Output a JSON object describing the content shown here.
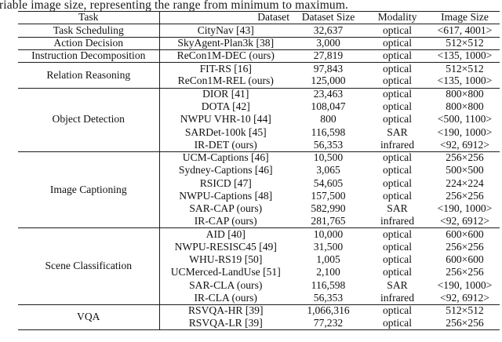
{
  "caption": {
    "visible_text": "riable image size, representing the range from minimum to maximum."
  },
  "table": {
    "headers": [
      "Task",
      "Dataset",
      "Dataset Size",
      "Modality",
      "Image Size"
    ],
    "groups": [
      {
        "task": "Task Scheduling",
        "rows": [
          {
            "dataset": "CityNav [43]",
            "dataset_size": "32,637",
            "modality": "optical",
            "image_size": "<617, 4001>"
          }
        ]
      },
      {
        "task": "Action Decision",
        "rows": [
          {
            "dataset": "SkyAgent-Plan3k [38]",
            "dataset_size": "3,000",
            "modality": "optical",
            "image_size": "512×512"
          }
        ]
      },
      {
        "task": "Instruction Decomposition",
        "rows": [
          {
            "dataset": "ReCon1M-DEC (ours)",
            "dataset_size": "27,819",
            "modality": "optical",
            "image_size": "<135, 1000>"
          }
        ]
      },
      {
        "task": "Relation Reasoning",
        "rows": [
          {
            "dataset": "FIT-RS [16]",
            "dataset_size": "97,843",
            "modality": "optical",
            "image_size": "512×512"
          },
          {
            "dataset": "ReCon1M-REL (ours)",
            "dataset_size": "125,000",
            "modality": "optical",
            "image_size": "<135, 1000>"
          }
        ]
      },
      {
        "task": "Object Detection",
        "rows": [
          {
            "dataset": "DIOR [41]",
            "dataset_size": "23,463",
            "modality": "optical",
            "image_size": "800×800"
          },
          {
            "dataset": "DOTA [42]",
            "dataset_size": "108,047",
            "modality": "optical",
            "image_size": "800×800"
          },
          {
            "dataset": "NWPU VHR-10 [44]",
            "dataset_size": "800",
            "modality": "optical",
            "image_size": "<500, 1100>"
          },
          {
            "dataset": "SARDet-100k [45]",
            "dataset_size": "116,598",
            "modality": "SAR",
            "image_size": "<190, 1000>"
          },
          {
            "dataset": "IR-DET (ours)",
            "dataset_size": "56,353",
            "modality": "infrared",
            "image_size": "<92, 6912>"
          }
        ]
      },
      {
        "task": "Image Captioning",
        "rows": [
          {
            "dataset": "UCM-Captions [46]",
            "dataset_size": "10,500",
            "modality": "optical",
            "image_size": "256×256"
          },
          {
            "dataset": "Sydney-Captions [46]",
            "dataset_size": "3,065",
            "modality": "optical",
            "image_size": "500×500"
          },
          {
            "dataset": "RSICD [47]",
            "dataset_size": "54,605",
            "modality": "optical",
            "image_size": "224×224"
          },
          {
            "dataset": "NWPU-Captions [48]",
            "dataset_size": "157,500",
            "modality": "optical",
            "image_size": "256×256"
          },
          {
            "dataset": "SAR-CAP (ours)",
            "dataset_size": "582,990",
            "modality": "SAR",
            "image_size": "<190, 1000>"
          },
          {
            "dataset": "IR-CAP (ours)",
            "dataset_size": "281,765",
            "modality": "infrared",
            "image_size": "<92, 6912>"
          }
        ]
      },
      {
        "task": "Scene Classification",
        "rows": [
          {
            "dataset": "AID [40]",
            "dataset_size": "10,000",
            "modality": "optical",
            "image_size": "600×600"
          },
          {
            "dataset": "NWPU-RESISC45 [49]",
            "dataset_size": "31,500",
            "modality": "optical",
            "image_size": "256×256"
          },
          {
            "dataset": "WHU-RS19 [50]",
            "dataset_size": "1,005",
            "modality": "optical",
            "image_size": "600×600"
          },
          {
            "dataset": "UCMerced-LandUse [51]",
            "dataset_size": "2,100",
            "modality": "optical",
            "image_size": "256×256"
          },
          {
            "dataset": "SAR-CLA (ours)",
            "dataset_size": "116,598",
            "modality": "SAR",
            "image_size": "<190, 1000>"
          },
          {
            "dataset": "IR-CLA (ours)",
            "dataset_size": "56,353",
            "modality": "infrared",
            "image_size": "<92, 6912>"
          }
        ]
      },
      {
        "task": "VQA",
        "rows": [
          {
            "dataset": "RSVQA-HR [39]",
            "dataset_size": "1,066,316",
            "modality": "optical",
            "image_size": "512×512"
          },
          {
            "dataset": "RSVQA-LR [39]",
            "dataset_size": "77,232",
            "modality": "optical",
            "image_size": "256×256"
          }
        ]
      }
    ]
  },
  "colors": {
    "text": "#111111",
    "rule": "#1c1c1c",
    "background": "#ffffff"
  }
}
